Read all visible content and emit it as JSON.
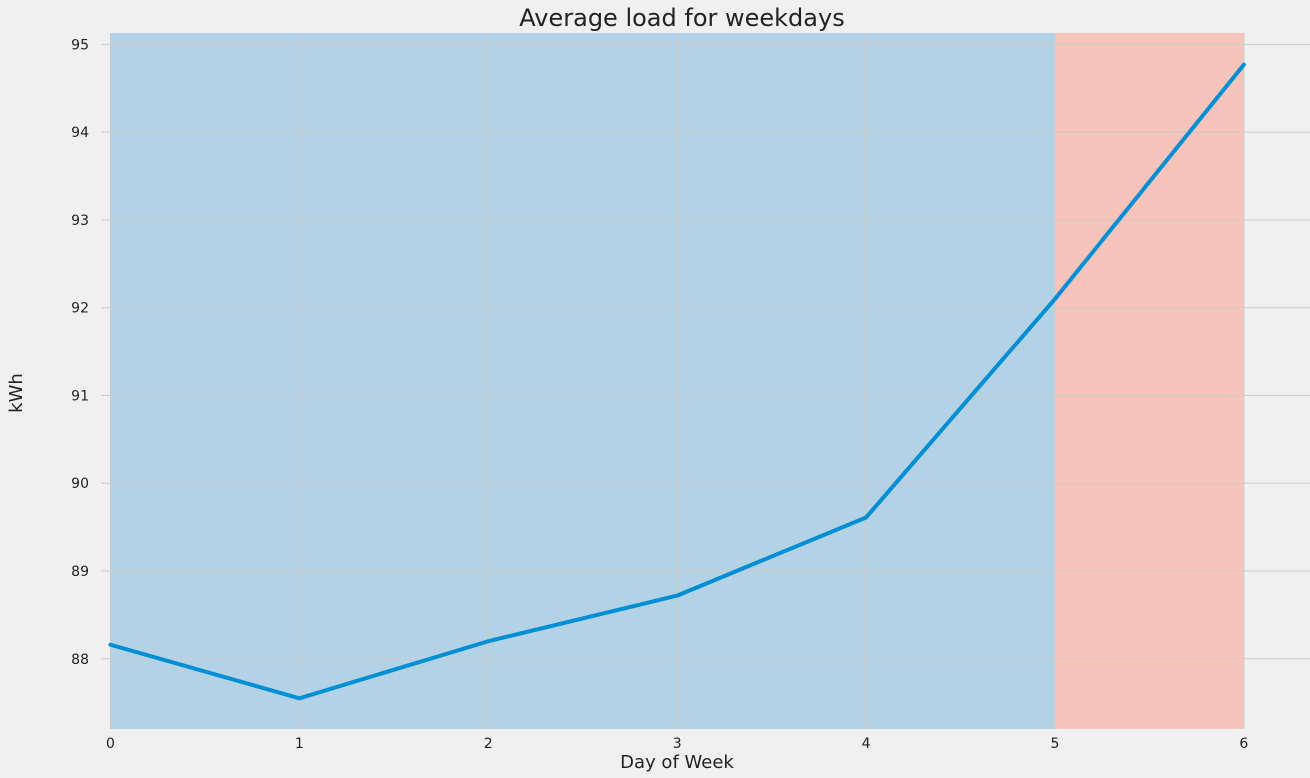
{
  "chart_data": {
    "type": "line",
    "title": "Average load for weekdays",
    "xlabel": "Day of Week",
    "ylabel": "kWh",
    "x": [
      0,
      1,
      2,
      3,
      4,
      5,
      6
    ],
    "series": [
      {
        "values": [
          88.16,
          87.55,
          88.2,
          88.72,
          89.61,
          92.1,
          94.77
        ],
        "color": "#008fd5"
      }
    ],
    "xlim": [
      -0.05,
      6.35
    ],
    "ylim": [
      87.2,
      95.13
    ],
    "xticks": [
      "0",
      "1",
      "2",
      "3",
      "4",
      "5",
      "6"
    ],
    "yticks": [
      "88",
      "89",
      "90",
      "91",
      "92",
      "93",
      "94",
      "95"
    ],
    "grid": true,
    "spans": [
      {
        "x0": 0,
        "x1": 5,
        "color": "#6baed6",
        "opacity": 0.45
      },
      {
        "x0": 5,
        "x1": 6,
        "color": "#fc8d7a",
        "opacity": 0.45
      }
    ],
    "colors": {
      "background": "#f0f0f0",
      "grid": "#cbcbcb",
      "line": "#008fd5"
    }
  }
}
